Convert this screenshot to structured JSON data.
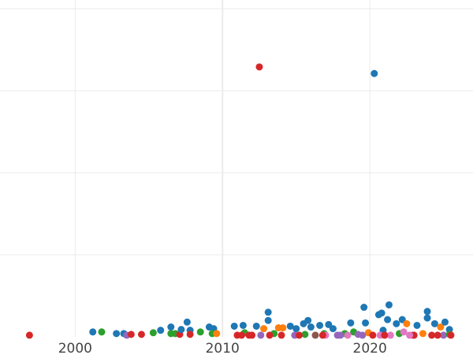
{
  "chart_data": {
    "type": "scatter",
    "title": "",
    "xlabel": "",
    "ylabel": "",
    "xlim": [
      1994.9,
      2027.0
    ],
    "ylim": [
      0,
      4
    ],
    "x_ticks": [
      "2000",
      "2010",
      "2020"
    ],
    "x_tick_values": [
      2000,
      2010,
      2020
    ],
    "y_grid_values": [
      1,
      2,
      3,
      4
    ],
    "grid": true,
    "colors": [
      "#1f77b4",
      "#ff7f0e",
      "#2ca02c",
      "#d62728",
      "#9467bd",
      "#8c564b",
      "#e377c2"
    ],
    "points": [
      [
        1996.9,
        0.02,
        3
      ],
      [
        2001.2,
        0.06,
        0
      ],
      [
        2001.8,
        0.06,
        2
      ],
      [
        2002.8,
        0.04,
        0
      ],
      [
        2003.3,
        0.04,
        0
      ],
      [
        2003.5,
        0.02,
        4
      ],
      [
        2003.8,
        0.03,
        3
      ],
      [
        2004.5,
        0.03,
        3
      ],
      [
        2005.3,
        0.05,
        2
      ],
      [
        2005.8,
        0.08,
        0
      ],
      [
        2006.5,
        0.12,
        0
      ],
      [
        2006.5,
        0.04,
        2
      ],
      [
        2006.8,
        0.04,
        2
      ],
      [
        2007.1,
        0.03,
        3
      ],
      [
        2007.2,
        0.09,
        0
      ],
      [
        2007.6,
        0.18,
        0
      ],
      [
        2007.8,
        0.08,
        0
      ],
      [
        2007.8,
        0.03,
        3
      ],
      [
        2008.5,
        0.06,
        2
      ],
      [
        2009.1,
        0.12,
        0
      ],
      [
        2009.4,
        0.1,
        0
      ],
      [
        2009.3,
        0.04,
        2
      ],
      [
        2009.6,
        0.04,
        1
      ],
      [
        2010.8,
        0.13,
        0
      ],
      [
        2011.4,
        0.14,
        0
      ],
      [
        2011.5,
        0.05,
        2
      ],
      [
        2011.3,
        0.02,
        3
      ],
      [
        2011.8,
        0.02,
        3
      ],
      [
        2012.3,
        0.13,
        0
      ],
      [
        2012.5,
        3.29,
        3
      ],
      [
        2012.8,
        0.1,
        1
      ],
      [
        2012.6,
        0.02,
        4
      ],
      [
        2013.1,
        0.3,
        0
      ],
      [
        2013.1,
        0.2,
        0
      ],
      [
        2013.5,
        0.04,
        2
      ],
      [
        2013.8,
        0.11,
        1
      ],
      [
        2014.1,
        0.11,
        1
      ],
      [
        2014.0,
        0.02,
        3
      ],
      [
        2014.6,
        0.13,
        0
      ],
      [
        2014.9,
        0.02,
        4
      ],
      [
        2015.0,
        0.1,
        0
      ],
      [
        2015.5,
        0.16,
        0
      ],
      [
        2015.8,
        0.2,
        0
      ],
      [
        2015.6,
        0.03,
        2
      ],
      [
        2016.0,
        0.12,
        0
      ],
      [
        2016.3,
        0.02,
        5
      ],
      [
        2016.6,
        0.14,
        0
      ],
      [
        2016.9,
        0.04,
        2
      ],
      [
        2017.2,
        0.15,
        0
      ],
      [
        2017.0,
        0.02,
        6
      ],
      [
        2017.5,
        0.1,
        0
      ],
      [
        2017.8,
        0.02,
        4
      ],
      [
        2018.3,
        0.04,
        2
      ],
      [
        2018.7,
        0.17,
        0
      ],
      [
        2018.9,
        0.06,
        2
      ],
      [
        2019.2,
        0.03,
        4
      ],
      [
        2019.6,
        0.36,
        0
      ],
      [
        2019.7,
        0.17,
        0
      ],
      [
        2019.9,
        0.05,
        1
      ],
      [
        2020.3,
        3.21,
        0
      ],
      [
        2020.6,
        0.27,
        0
      ],
      [
        2020.8,
        0.29,
        0
      ],
      [
        2020.9,
        0.08,
        0
      ],
      [
        2020.7,
        0.02,
        6
      ],
      [
        2021.2,
        0.21,
        0
      ],
      [
        2021.3,
        0.39,
        0
      ],
      [
        2021.4,
        0.02,
        6
      ],
      [
        2021.8,
        0.16,
        0
      ],
      [
        2022.0,
        0.04,
        2
      ],
      [
        2022.2,
        0.21,
        0
      ],
      [
        2022.3,
        0.06,
        6
      ],
      [
        2022.5,
        0.16,
        1
      ],
      [
        2022.9,
        0.02,
        4
      ],
      [
        2023.2,
        0.14,
        0
      ],
      [
        2023.6,
        0.04,
        1
      ],
      [
        2023.9,
        0.31,
        0
      ],
      [
        2023.9,
        0.23,
        0
      ],
      [
        2024.2,
        0.02,
        3
      ],
      [
        2024.4,
        0.16,
        0
      ],
      [
        2024.8,
        0.12,
        1
      ],
      [
        2025.1,
        0.18,
        0
      ],
      [
        2025.0,
        0.02,
        4
      ],
      [
        2025.4,
        0.09,
        0
      ],
      [
        2025.4,
        0.03,
        2
      ],
      [
        2025.5,
        0.02,
        3
      ],
      [
        2011.0,
        0.02,
        3
      ],
      [
        2012.0,
        0.02,
        3
      ],
      [
        2013.2,
        0.02,
        3
      ],
      [
        2015.2,
        0.02,
        3
      ],
      [
        2016.8,
        0.02,
        3
      ],
      [
        2018.0,
        0.02,
        4
      ],
      [
        2019.5,
        0.02,
        4
      ],
      [
        2020.2,
        0.02,
        3
      ],
      [
        2021.0,
        0.02,
        3
      ],
      [
        2023.0,
        0.02,
        3
      ],
      [
        2024.6,
        0.02,
        3
      ],
      [
        2018.5,
        0.02,
        6
      ],
      [
        2022.7,
        0.02,
        6
      ]
    ]
  }
}
